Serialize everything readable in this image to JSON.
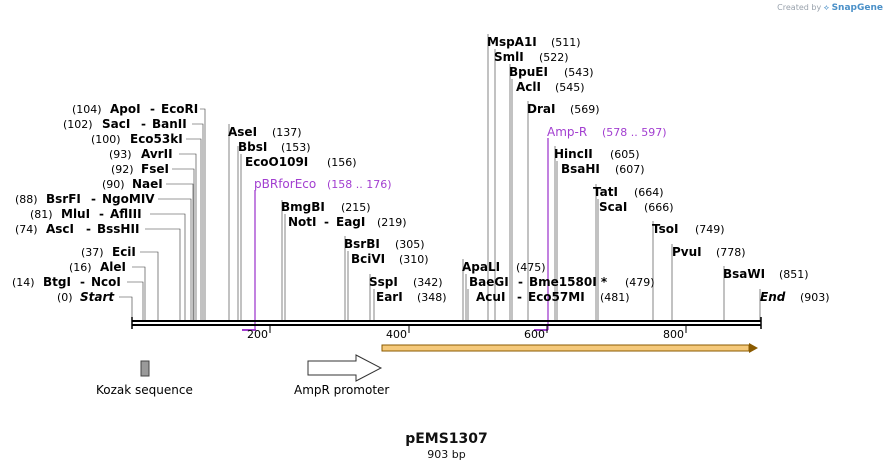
{
  "watermark": {
    "prefix": "Created by",
    "brand": "SnapGene"
  },
  "plasmid": {
    "name": "pEMS1307",
    "size_label": "903 bp"
  },
  "sites_left": [
    {
      "pre": "(104)",
      "name": "ApoI",
      "sep": "-",
      "name2": "EcoRI",
      "post": ""
    },
    {
      "pre": "(102)",
      "name": "SacI",
      "sep": "-",
      "name2": "BanII",
      "post": ""
    },
    {
      "pre": "(100)",
      "name": "Eco53kI",
      "sep": "",
      "name2": "",
      "post": ""
    },
    {
      "pre": "(93)",
      "name": "AvrII",
      "sep": "",
      "name2": "",
      "post": ""
    },
    {
      "pre": "(92)",
      "name": "FseI",
      "sep": "",
      "name2": "",
      "post": ""
    },
    {
      "pre": "(90)",
      "name": "NaeI",
      "sep": "",
      "name2": "",
      "post": ""
    },
    {
      "pre": "(88)",
      "name": "BsrFI",
      "sep": "-",
      "name2": "NgoMIV",
      "post": ""
    },
    {
      "pre": "(81)",
      "name": "MluI",
      "sep": "-",
      "name2": "AflIII",
      "post": ""
    },
    {
      "pre": "(74)",
      "name": "AscI",
      "sep": "-",
      "name2": "BssHII",
      "post": ""
    },
    {
      "pre": "(37)",
      "name": "EciI",
      "sep": "",
      "name2": "",
      "post": ""
    },
    {
      "pre": "(16)",
      "name": "AleI",
      "sep": "",
      "name2": "",
      "post": ""
    },
    {
      "pre": "(14)",
      "name": "BtgI",
      "sep": "-",
      "name2": "NcoI",
      "post": ""
    },
    {
      "pre": "(0)",
      "name": "Start",
      "sep": "",
      "name2": "",
      "post": ""
    }
  ],
  "sites_mid": [
    {
      "name": "AseI",
      "post": "(137)"
    },
    {
      "name": "BbsI",
      "post": "(153)"
    },
    {
      "name": "EcoO109I",
      "post": "(156)"
    },
    {
      "name": "BmgBI",
      "post": "(215)"
    },
    {
      "name": "NotI",
      "sep": "-",
      "name2": "EagI",
      "post": "(219)"
    },
    {
      "name": "BsrBI",
      "post": "(305)"
    },
    {
      "name": "BciVI",
      "post": "(310)"
    },
    {
      "name": "SspI",
      "post": "(342)"
    },
    {
      "name": "EarI",
      "post": "(348)"
    }
  ],
  "sites_right": [
    {
      "name": "MspA1I",
      "post": "(511)"
    },
    {
      "name": "SmlI",
      "post": "(522)"
    },
    {
      "name": "BpuEI",
      "post": "(543)"
    },
    {
      "name": "AclI",
      "post": "(545)"
    },
    {
      "name": "DraI",
      "post": "(569)"
    },
    {
      "name": "HincII",
      "post": "(605)"
    },
    {
      "name": "BsaHI",
      "post": "(607)"
    },
    {
      "name": "ApaLI",
      "post": "(475)"
    },
    {
      "name": "BaeGI",
      "sep": "-",
      "name2": "Bme1580I *",
      "post": "(479)"
    },
    {
      "name": "AcuI",
      "sep": "-",
      "name2": "Eco57MI",
      "post": "(481)"
    },
    {
      "name": "TatI",
      "post": "(664)"
    },
    {
      "name": "ScaI",
      "post": "(666)"
    },
    {
      "name": "TsoI",
      "post": "(749)"
    },
    {
      "name": "PvuI",
      "post": "(778)"
    },
    {
      "name": "BsaWI",
      "post": "(851)"
    },
    {
      "name": "End",
      "post": "(903)"
    }
  ],
  "primers": [
    {
      "name": "pBRforEco",
      "range": "(158 .. 176)"
    },
    {
      "name": "Amp-R",
      "range": "(578 .. 597)"
    }
  ],
  "ticks": [
    "200",
    "400",
    "600",
    "800"
  ],
  "features": [
    {
      "name": "Kozak sequence"
    },
    {
      "name": "AmpR promoter"
    }
  ],
  "colors": {
    "primer": "#a23ed0",
    "cds_fill": "#f5c97a",
    "cds_stroke": "#8a5a00",
    "backbone": "#000000"
  }
}
